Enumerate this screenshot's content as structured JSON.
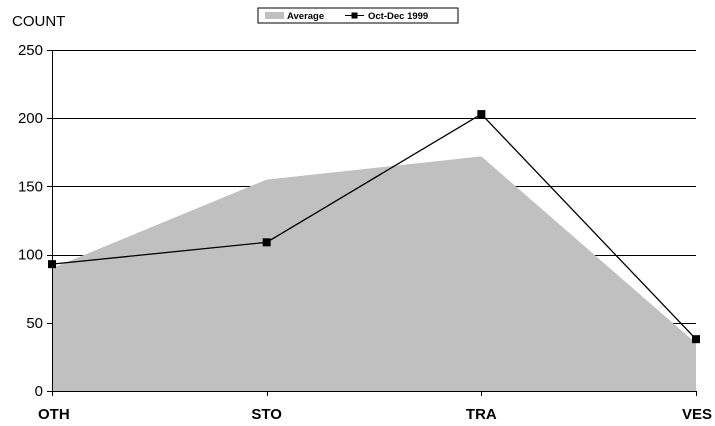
{
  "chart_data": {
    "type": "area",
    "categories": [
      "OTH",
      "STO",
      "TRA",
      "VES"
    ],
    "ylabel": "COUNT",
    "ylim": [
      0,
      250
    ],
    "yticks": [
      0,
      50,
      100,
      150,
      200,
      250
    ],
    "grid": true,
    "legend_position": "top-center",
    "series": [
      {
        "name": "Average",
        "type": "area",
        "values": [
          90,
          155,
          172,
          35
        ],
        "color": "#c0c0c0"
      },
      {
        "name": "Oct-Dec 1999",
        "type": "line",
        "marker": "square",
        "values": [
          93,
          109,
          203,
          38
        ],
        "color": "#000000"
      }
    ]
  }
}
